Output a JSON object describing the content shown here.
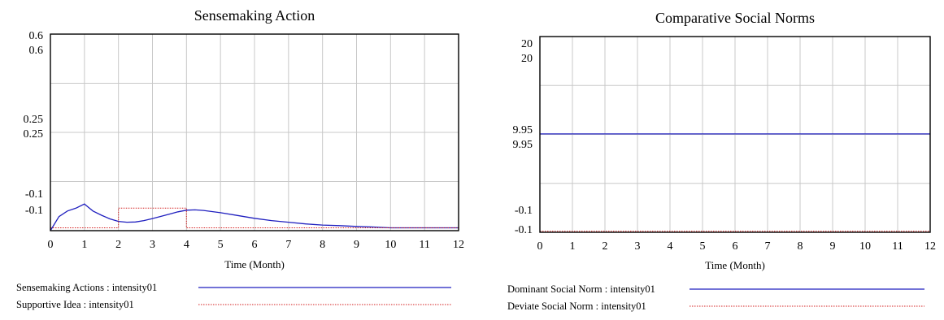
{
  "colors": {
    "series_blue": "#1f1fbf",
    "series_red": "#d42020",
    "grid": "#c8c8c8",
    "frame": "#000000"
  },
  "chart_data": [
    {
      "type": "line",
      "title": "Sensemaking Action",
      "xlabel": "Time (Month)",
      "ylabel": "",
      "xlim": [
        0,
        12
      ],
      "ylim": [
        -0.1,
        0.6
      ],
      "x_ticks": [
        "0",
        "1",
        "2",
        "3",
        "4",
        "5",
        "6",
        "7",
        "8",
        "9",
        "10",
        "11",
        "12"
      ],
      "y_tick_labels": [
        {
          "value": 0.6,
          "labels": [
            "0.6",
            "0.6"
          ]
        },
        {
          "value": 0.25,
          "labels": [
            "0.25",
            "0.25"
          ]
        },
        {
          "value": -0.1,
          "labels": [
            "-0.1",
            "-0.1"
          ]
        }
      ],
      "grid": true,
      "series": [
        {
          "name": "Sensemaking Actions : intensity01",
          "color": "#1f1fbf",
          "style": "solid",
          "x": [
            0,
            0.25,
            0.5,
            0.75,
            1,
            1.25,
            1.5,
            1.75,
            2,
            2.25,
            2.5,
            2.75,
            3,
            3.25,
            3.5,
            3.75,
            4,
            4.25,
            4.5,
            5,
            5.5,
            6,
            6.5,
            7,
            7.5,
            8,
            8.5,
            9,
            9.5,
            10,
            10.5,
            11,
            11.5,
            12
          ],
          "y": [
            -0.1,
            -0.05,
            -0.03,
            -0.02,
            -0.005,
            -0.03,
            -0.045,
            -0.058,
            -0.067,
            -0.07,
            -0.069,
            -0.064,
            -0.057,
            -0.049,
            -0.041,
            -0.033,
            -0.027,
            -0.026,
            -0.028,
            -0.036,
            -0.046,
            -0.056,
            -0.064,
            -0.07,
            -0.076,
            -0.08,
            -0.082,
            -0.085,
            -0.087,
            -0.09,
            -0.09,
            -0.09,
            -0.09,
            -0.09
          ]
        },
        {
          "name": "Supportive Idea : intensity01",
          "color": "#d42020",
          "style": "dotted",
          "x": [
            0,
            2,
            2,
            4,
            4,
            12
          ],
          "y": [
            -0.09,
            -0.09,
            -0.02,
            -0.02,
            -0.09,
            -0.09
          ]
        }
      ]
    },
    {
      "type": "line",
      "title": "Comparative Social Norms",
      "xlabel": "Time (Month)",
      "ylabel": "",
      "xlim": [
        0,
        12
      ],
      "ylim": [
        -0.1,
        20
      ],
      "x_ticks": [
        "0",
        "1",
        "2",
        "3",
        "4",
        "5",
        "6",
        "7",
        "8",
        "9",
        "10",
        "11",
        "12"
      ],
      "y_tick_labels": [
        {
          "value": 20,
          "labels": [
            "20",
            "20"
          ]
        },
        {
          "value": 9.95,
          "labels": [
            "9.95",
            "9.95"
          ]
        },
        {
          "value": -0.1,
          "labels": [
            "-0.1",
            "-0.1"
          ]
        }
      ],
      "grid": true,
      "series": [
        {
          "name": "Dominant Social Norm : intensity01",
          "color": "#1f1fbf",
          "style": "solid",
          "x": [
            0,
            12
          ],
          "y": [
            10,
            10
          ]
        },
        {
          "name": "Deviate Social Norm : intensity01",
          "color": "#d42020",
          "style": "dotted",
          "x": [
            0,
            12
          ],
          "y": [
            0,
            0
          ]
        }
      ]
    }
  ]
}
